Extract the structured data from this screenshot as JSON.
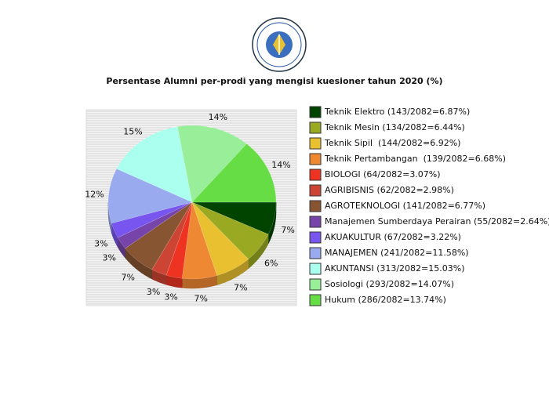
{
  "chart_data": {
    "type": "pie",
    "title": "Persentase Alumni per-prodi yang mengisi kuesioner tahun 2020 (%)",
    "categories": [
      "Teknik Elektro (143/2082=6.87%)",
      "Teknik Mesin (134/2082=6.44%)",
      "Teknik Sipil  (144/2082=6.92%)",
      "Teknik Pertambangan  (139/2082=6.68%)",
      "BIOLOGI (64/2082=3.07%)",
      "AGRIBISNIS (62/2082=2.98%)",
      "AGROTEKNOLOGI (141/2082=6.77%)",
      "Manajemen Sumberdaya Perairan (55/2082=2.64%)",
      "AKUAKULTUR (67/2082=3.22%)",
      "MANAJEMEN (241/2082=11.58%)",
      "AKUNTANSI (313/2082=15.03%)",
      "Sosiologi (293/2082=14.07%)",
      "Hukum (286/2082=13.74%)"
    ],
    "values": [
      6.87,
      6.44,
      6.92,
      6.68,
      3.07,
      2.98,
      6.77,
      2.64,
      3.22,
      11.58,
      15.03,
      14.07,
      13.74
    ],
    "value_labels": [
      "7%",
      "6%",
      "7%",
      "7%",
      "3%",
      "3%",
      "7%",
      "3%",
      "3%",
      "12%",
      "15%",
      "14%",
      "14%"
    ],
    "colors": [
      "#004400",
      "#99aa22",
      "#e8c030",
      "#ee8833",
      "#ee3322",
      "#cc4433",
      "#885533",
      "#7744aa",
      "#7755ee",
      "#99aaee",
      "#aaffee",
      "#99ee99",
      "#66dd44"
    ],
    "legend": "right"
  }
}
